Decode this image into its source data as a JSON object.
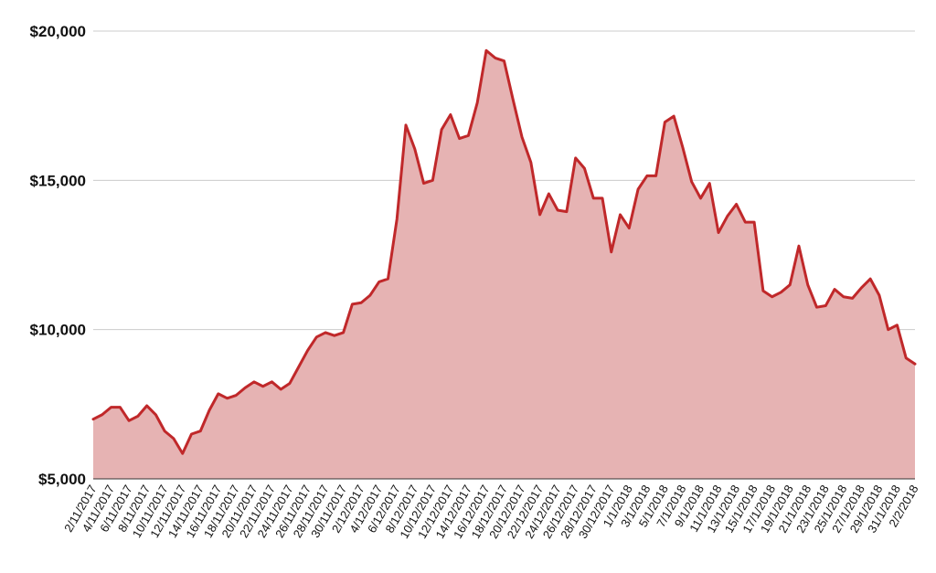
{
  "chart_data": {
    "type": "area",
    "title": "",
    "xlabel": "",
    "ylabel": "",
    "ylim": [
      5000,
      20000
    ],
    "y_ticks": [
      5000,
      10000,
      15000,
      20000
    ],
    "y_tick_labels": [
      "$5,000",
      "$10,000",
      "$15,000",
      "$20,000"
    ],
    "grid": "horizontal",
    "colors": {
      "line": "#c0282a",
      "fill": "#e6b3b3",
      "grid": "#cccccc"
    },
    "x_tick_labels": [
      "2/11/2017",
      "4/11/2017",
      "6/11/2017",
      "8/11/2017",
      "10/11/2017",
      "12/11/2017",
      "14/11/2017",
      "16/11/2017",
      "18/11/2017",
      "20/11/2017",
      "22/11/2017",
      "24/11/2017",
      "26/11/2017",
      "28/11/2017",
      "30/11/2017",
      "2/12/2017",
      "4/12/2017",
      "6/12/2017",
      "8/12/2017",
      "10/12/2017",
      "12/12/2017",
      "14/12/2017",
      "16/12/2017",
      "18/12/2017",
      "20/12/2017",
      "22/12/2017",
      "24/12/2017",
      "26/12/2017",
      "28/12/2017",
      "30/12/2017",
      "1/1/2018",
      "3/1/2018",
      "5/1/2018",
      "7/1/2018",
      "9/1/2018",
      "11/1/2018",
      "13/1/2018",
      "15/1/2018",
      "17/1/2018",
      "19/1/2018",
      "21/1/2018",
      "23/1/2018",
      "25/1/2018",
      "27/1/2018",
      "29/1/2018",
      "31/1/2018",
      "2/2/2018"
    ],
    "series": [
      {
        "values": [
          7000,
          7150,
          7400,
          7400,
          6950,
          7100,
          7450,
          7150,
          6600,
          6350,
          5850,
          6500,
          6600,
          7300,
          7850,
          7700,
          7800,
          8050,
          8250,
          8100,
          8250,
          8000,
          8200,
          8750,
          9300,
          9750,
          9900,
          9800,
          9900,
          10850,
          10900,
          11150,
          11600,
          11700,
          13700,
          16850,
          16050,
          14900,
          15000,
          16700,
          17200,
          16400,
          16500,
          17600,
          19350,
          19100,
          19000,
          17700,
          16450,
          15600,
          13850,
          14550,
          14000,
          13950,
          15750,
          15400,
          14400,
          14400,
          12600,
          13850,
          13400,
          14700,
          15150,
          15150,
          16950,
          17150,
          16100,
          14950,
          14400,
          14900,
          13250,
          13800,
          14200,
          13600,
          13600,
          11300,
          11100,
          11250,
          11500,
          12800,
          11500,
          10750,
          10800,
          11350,
          11100,
          11050,
          11400,
          11700,
          11150,
          10000,
          10150,
          9050,
          8850
        ]
      }
    ]
  }
}
